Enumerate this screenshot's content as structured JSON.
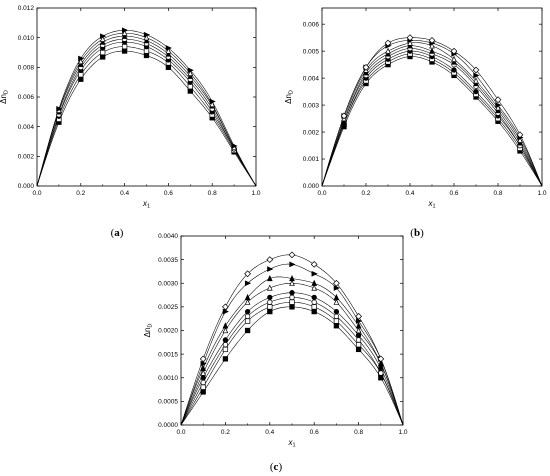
{
  "figure": {
    "panels": [
      {
        "label": "(a)",
        "bold": "a"
      },
      {
        "label": "(b)",
        "bold": "b"
      },
      {
        "label": "(c)",
        "bold": "c"
      }
    ]
  },
  "chart_data": [
    {
      "type": "scatter",
      "panel": "(a)",
      "title": "",
      "xlabel": "x1",
      "ylabel": "Δn_D",
      "xlim": [
        0.0,
        1.0
      ],
      "ylim": [
        0.0,
        0.012
      ],
      "xticks": [
        "0.0",
        "0.2",
        "0.4",
        "0.6",
        "0.8",
        "1.0"
      ],
      "yticks": [
        "0.000",
        "0.002",
        "0.004",
        "0.006",
        "0.008",
        "0.010",
        "0.012"
      ],
      "fit_curves": true,
      "series": [
        {
          "marker": "square-filled",
          "x": [
            0.1,
            0.2,
            0.3,
            0.4,
            0.5,
            0.6,
            0.7,
            0.8,
            0.9
          ],
          "values": [
            0.0043,
            0.0072,
            0.0087,
            0.0091,
            0.0088,
            0.008,
            0.0064,
            0.0046,
            0.0023
          ]
        },
        {
          "marker": "square-open",
          "x": [
            0.1,
            0.2,
            0.3,
            0.4,
            0.5,
            0.6,
            0.7,
            0.8,
            0.9
          ],
          "values": [
            0.0045,
            0.0075,
            0.009,
            0.0094,
            0.0091,
            0.0083,
            0.0067,
            0.0048,
            0.0024
          ]
        },
        {
          "marker": "circle-filled",
          "x": [
            0.1,
            0.2,
            0.3,
            0.4,
            0.5,
            0.6,
            0.7,
            0.8,
            0.9
          ],
          "values": [
            0.0047,
            0.0078,
            0.0093,
            0.0097,
            0.0094,
            0.0085,
            0.007,
            0.005,
            0.0025
          ]
        },
        {
          "marker": "circle-open",
          "x": [
            0.1,
            0.2,
            0.3,
            0.4,
            0.5,
            0.6,
            0.7,
            0.8,
            0.9
          ],
          "values": [
            0.0048,
            0.008,
            0.0095,
            0.0099,
            0.0096,
            0.0087,
            0.0072,
            0.0052,
            0.0025
          ]
        },
        {
          "marker": "triangle-filled",
          "x": [
            0.1,
            0.2,
            0.3,
            0.4,
            0.5,
            0.6,
            0.7,
            0.8,
            0.9
          ],
          "values": [
            0.005,
            0.0082,
            0.0097,
            0.0101,
            0.0098,
            0.0089,
            0.0074,
            0.0054,
            0.0026
          ]
        },
        {
          "marker": "triangle-open",
          "x": [
            0.1,
            0.2,
            0.3,
            0.4,
            0.5,
            0.6,
            0.7,
            0.8,
            0.9
          ],
          "values": [
            0.0051,
            0.0084,
            0.0099,
            0.0103,
            0.01,
            0.0091,
            0.0076,
            0.0055,
            0.0026
          ]
        },
        {
          "marker": "triangle-right-filled",
          "x": [
            0.1,
            0.2,
            0.3,
            0.4,
            0.5,
            0.6,
            0.7,
            0.8,
            0.9
          ],
          "values": [
            0.0052,
            0.0086,
            0.0101,
            0.0105,
            0.0102,
            0.0093,
            0.0078,
            0.0057,
            0.0027
          ]
        }
      ]
    },
    {
      "type": "scatter",
      "panel": "(b)",
      "title": "",
      "xlabel": "x1",
      "ylabel": "Δn_D",
      "xlim": [
        0.0,
        1.0
      ],
      "ylim": [
        0.0,
        0.0066
      ],
      "xticks": [
        "0.0",
        "0.2",
        "0.4",
        "0.6",
        "0.8",
        "1.0"
      ],
      "yticks": [
        "0.000",
        "0.001",
        "0.002",
        "0.003",
        "0.004",
        "0.005",
        "0.006"
      ],
      "fit_curves": true,
      "series": [
        {
          "marker": "square-filled",
          "x": [
            0.1,
            0.2,
            0.3,
            0.4,
            0.5,
            0.6,
            0.7,
            0.8,
            0.9
          ],
          "values": [
            0.0022,
            0.0038,
            0.0045,
            0.0048,
            0.0046,
            0.0041,
            0.0033,
            0.0024,
            0.0013
          ]
        },
        {
          "marker": "square-open",
          "x": [
            0.1,
            0.2,
            0.3,
            0.4,
            0.5,
            0.6,
            0.7,
            0.8,
            0.9
          ],
          "values": [
            0.0023,
            0.0039,
            0.0046,
            0.0049,
            0.0047,
            0.0042,
            0.0034,
            0.0025,
            0.0014
          ]
        },
        {
          "marker": "circle-filled",
          "x": [
            0.1,
            0.2,
            0.3,
            0.4,
            0.5,
            0.6,
            0.7,
            0.8,
            0.9
          ],
          "values": [
            0.0023,
            0.004,
            0.0047,
            0.005,
            0.0048,
            0.0043,
            0.0035,
            0.0026,
            0.0015
          ]
        },
        {
          "marker": "circle-open",
          "x": [
            0.1,
            0.2,
            0.3,
            0.4,
            0.5,
            0.6,
            0.7,
            0.8,
            0.9
          ],
          "values": [
            0.0024,
            0.0041,
            0.0048,
            0.0051,
            0.0049,
            0.0045,
            0.0037,
            0.0027,
            0.0015
          ]
        },
        {
          "marker": "triangle-filled",
          "x": [
            0.1,
            0.2,
            0.3,
            0.4,
            0.5,
            0.6,
            0.7,
            0.8,
            0.9
          ],
          "values": [
            0.0024,
            0.0042,
            0.0049,
            0.0052,
            0.005,
            0.0046,
            0.0038,
            0.0028,
            0.0016
          ]
        },
        {
          "marker": "triangle-open",
          "x": [
            0.1,
            0.2,
            0.3,
            0.4,
            0.5,
            0.6,
            0.7,
            0.8,
            0.9
          ],
          "values": [
            0.0025,
            0.0043,
            0.005,
            0.0053,
            0.0052,
            0.0047,
            0.0039,
            0.0029,
            0.0017
          ]
        },
        {
          "marker": "triangle-right-filled",
          "x": [
            0.1,
            0.2,
            0.3,
            0.4,
            0.5,
            0.6,
            0.7,
            0.8,
            0.9
          ],
          "values": [
            0.0026,
            0.0044,
            0.0052,
            0.0054,
            0.0053,
            0.0049,
            0.0041,
            0.003,
            0.0018
          ]
        },
        {
          "marker": "diamond-open",
          "x": [
            0.1,
            0.2,
            0.3,
            0.4,
            0.5,
            0.6,
            0.7,
            0.8,
            0.9
          ],
          "values": [
            0.0026,
            0.0044,
            0.0053,
            0.0055,
            0.0054,
            0.005,
            0.0043,
            0.0032,
            0.0019
          ]
        }
      ]
    },
    {
      "type": "scatter",
      "panel": "(c)",
      "title": "",
      "xlabel": "x1",
      "ylabel": "Δn_D",
      "xlim": [
        0.0,
        1.0
      ],
      "ylim": [
        0.0,
        0.004
      ],
      "xticks": [
        "0.0",
        "0.2",
        "0.4",
        "0.6",
        "0.8",
        "1.0"
      ],
      "yticks": [
        "0.0000",
        "0.0005",
        "0.0010",
        "0.0015",
        "0.0020",
        "0.0025",
        "0.0030",
        "0.0035",
        "0.0040"
      ],
      "fit_curves": true,
      "series": [
        {
          "marker": "square-filled",
          "x": [
            0.1,
            0.2,
            0.3,
            0.4,
            0.5,
            0.6,
            0.7,
            0.8,
            0.9
          ],
          "values": [
            0.0007,
            0.0014,
            0.002,
            0.0024,
            0.0025,
            0.0024,
            0.0021,
            0.0016,
            0.001
          ]
        },
        {
          "marker": "square-open",
          "x": [
            0.1,
            0.2,
            0.3,
            0.4,
            0.5,
            0.6,
            0.7,
            0.8,
            0.9
          ],
          "values": [
            0.0008,
            0.0016,
            0.0022,
            0.0025,
            0.0026,
            0.0025,
            0.0022,
            0.0017,
            0.0011
          ]
        },
        {
          "marker": "circle-open",
          "x": [
            0.1,
            0.2,
            0.3,
            0.4,
            0.5,
            0.6,
            0.7,
            0.8,
            0.9
          ],
          "values": [
            0.0009,
            0.0017,
            0.0023,
            0.0026,
            0.0027,
            0.0026,
            0.0023,
            0.0018,
            0.0011
          ]
        },
        {
          "marker": "circle-filled",
          "x": [
            0.1,
            0.2,
            0.3,
            0.4,
            0.5,
            0.6,
            0.7,
            0.8,
            0.9
          ],
          "values": [
            0.001,
            0.0018,
            0.0024,
            0.0027,
            0.0028,
            0.0027,
            0.0024,
            0.0019,
            0.0012
          ]
        },
        {
          "marker": "triangle-open",
          "x": [
            0.1,
            0.2,
            0.3,
            0.4,
            0.5,
            0.6,
            0.7,
            0.8,
            0.9
          ],
          "values": [
            0.0011,
            0.002,
            0.0026,
            0.0029,
            0.003,
            0.0029,
            0.0026,
            0.002,
            0.0013
          ]
        },
        {
          "marker": "triangle-filled",
          "x": [
            0.1,
            0.2,
            0.3,
            0.4,
            0.5,
            0.6,
            0.7,
            0.8,
            0.9
          ],
          "values": [
            0.0012,
            0.0021,
            0.0027,
            0.0031,
            0.0031,
            0.003,
            0.0027,
            0.0021,
            0.0013
          ]
        },
        {
          "marker": "triangle-right-filled",
          "x": [
            0.1,
            0.2,
            0.3,
            0.4,
            0.5,
            0.6,
            0.7,
            0.8,
            0.9
          ],
          "values": [
            0.0013,
            0.0024,
            0.003,
            0.0033,
            0.0034,
            0.0032,
            0.0029,
            0.0022,
            0.0014
          ]
        },
        {
          "marker": "diamond-open",
          "x": [
            0.1,
            0.2,
            0.3,
            0.4,
            0.5,
            0.6,
            0.7,
            0.8,
            0.9
          ],
          "values": [
            0.0014,
            0.0025,
            0.0032,
            0.0035,
            0.0036,
            0.0034,
            0.003,
            0.0023,
            0.0014
          ]
        }
      ]
    }
  ]
}
